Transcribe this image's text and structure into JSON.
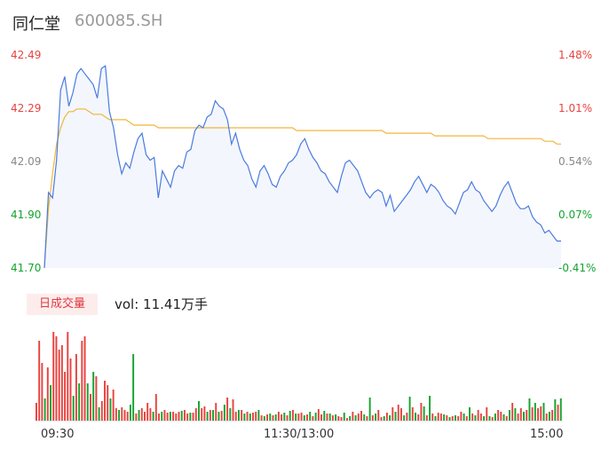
{
  "header": {
    "name": "同仁堂",
    "code": "600085.SH"
  },
  "colors": {
    "up": "#e8423f",
    "down": "#14a32f",
    "neutral": "#888888",
    "price_line": "#4a7be0",
    "avg_line": "#f2b53a",
    "area_fill": "#f3f6fc"
  },
  "volume_panel": {
    "tab_label": "日成交量",
    "vol_text": "vol: 11.41万手"
  },
  "chart_data": [
    {
      "type": "line",
      "title": "",
      "ylim": [
        41.7,
        42.49
      ],
      "left_ticks": [
        "42.49",
        "42.29",
        "42.09",
        "41.90",
        "41.70"
      ],
      "right_ticks": [
        "1.48%",
        "1.01%",
        "0.54%",
        "0.07%",
        "-0.41%"
      ],
      "x_ticks": [
        "09:30",
        "11:30/13:00",
        "15:00"
      ],
      "series": [
        {
          "name": "",
          "values": [
            41.7,
            41.98,
            41.96,
            42.1,
            42.36,
            42.41,
            42.3,
            42.35,
            42.42,
            42.44,
            42.42,
            42.4,
            42.38,
            42.33,
            42.44,
            42.45,
            42.28,
            42.22,
            42.12,
            42.05,
            42.09,
            42.07,
            42.13,
            42.18,
            42.2,
            42.12,
            42.1,
            42.11,
            41.96,
            42.06,
            42.03,
            42.0,
            42.06,
            42.08,
            42.07,
            42.13,
            42.14,
            42.21,
            42.23,
            42.22,
            42.26,
            42.27,
            42.32,
            42.3,
            42.29,
            42.25,
            42.16,
            42.2,
            42.14,
            42.1,
            42.08,
            42.03,
            42.0,
            42.06,
            42.08,
            42.05,
            42.01,
            42.0,
            42.04,
            42.06,
            42.09,
            42.1,
            42.12,
            42.16,
            42.18,
            42.14,
            42.11,
            42.09,
            42.06,
            42.05,
            42.02,
            42.0,
            41.98,
            42.04,
            42.09,
            42.1,
            42.08,
            42.06,
            42.02,
            41.98,
            41.96,
            41.98,
            41.99,
            41.98,
            41.93,
            41.97,
            41.91,
            41.93,
            41.95,
            41.97,
            41.99,
            42.02,
            42.04,
            42.01,
            41.98,
            42.01,
            42.0,
            41.98,
            41.95,
            41.93,
            41.92,
            41.9,
            41.94,
            41.98,
            41.99,
            42.02,
            41.99,
            41.98,
            41.95,
            41.93,
            41.91,
            41.93,
            41.97,
            42.0,
            42.02,
            41.98,
            41.94,
            41.92,
            41.92,
            41.93,
            41.89,
            41.87,
            41.86,
            41.83,
            41.84,
            41.82,
            41.8,
            41.8
          ]
        },
        {
          "name": "",
          "values": [
            41.7,
            41.92,
            42.05,
            42.16,
            42.22,
            42.26,
            42.28,
            42.28,
            42.29,
            42.29,
            42.29,
            42.28,
            42.27,
            42.27,
            42.27,
            42.26,
            42.25,
            42.25,
            42.25,
            42.25,
            42.25,
            42.24,
            42.23,
            42.23,
            42.23,
            42.23,
            42.23,
            42.23,
            42.22,
            42.22,
            42.22,
            42.22,
            42.22,
            42.22,
            42.22,
            42.22,
            42.22,
            42.22,
            42.22,
            42.22,
            42.22,
            42.22,
            42.22,
            42.22,
            42.22,
            42.22,
            42.22,
            42.22,
            42.22,
            42.22,
            42.22,
            42.22,
            42.22,
            42.22,
            42.22,
            42.22,
            42.22,
            42.22,
            42.22,
            42.22,
            42.22,
            42.22,
            42.21,
            42.21,
            42.21,
            42.21,
            42.21,
            42.21,
            42.21,
            42.21,
            42.21,
            42.21,
            42.21,
            42.21,
            42.21,
            42.21,
            42.21,
            42.21,
            42.21,
            42.21,
            42.21,
            42.21,
            42.21,
            42.21,
            42.2,
            42.2,
            42.2,
            42.2,
            42.2,
            42.2,
            42.2,
            42.2,
            42.2,
            42.2,
            42.2,
            42.2,
            42.19,
            42.19,
            42.19,
            42.19,
            42.19,
            42.19,
            42.19,
            42.19,
            42.19,
            42.19,
            42.19,
            42.19,
            42.19,
            42.18,
            42.18,
            42.18,
            42.18,
            42.18,
            42.18,
            42.18,
            42.18,
            42.18,
            42.18,
            42.18,
            42.18,
            42.18,
            42.18,
            42.17,
            42.17,
            42.17,
            42.16,
            42.16
          ]
        }
      ]
    },
    {
      "type": "bar",
      "title": "",
      "values": [
        20,
        90,
        65,
        25,
        60,
        40,
        100,
        95,
        80,
        85,
        55,
        100,
        70,
        28,
        75,
        42,
        90,
        95,
        42,
        30,
        55,
        50,
        15,
        22,
        45,
        40,
        25,
        35,
        14,
        12,
        15,
        12,
        10,
        18,
        75,
        8,
        12,
        14,
        10,
        20,
        14,
        10,
        30,
        8,
        10,
        12,
        9,
        10,
        10,
        8,
        10,
        11,
        12,
        8,
        9,
        9,
        14,
        22,
        14,
        16,
        10,
        12,
        12,
        20,
        10,
        11,
        18,
        26,
        14,
        24,
        10,
        12,
        12,
        8,
        10,
        8,
        9,
        10,
        12,
        6,
        5,
        7,
        8,
        6,
        7,
        10,
        7,
        9,
        6,
        11,
        12,
        8,
        8,
        9,
        6,
        7,
        10,
        5,
        9,
        13,
        7,
        11,
        8,
        8,
        6,
        7,
        5,
        4,
        9,
        3,
        5,
        10,
        6,
        8,
        11,
        7,
        5,
        26,
        6,
        8,
        12,
        4,
        5,
        9,
        6,
        15,
        10,
        18,
        14,
        6,
        9,
        27,
        15,
        9,
        7,
        20,
        16,
        6,
        28,
        8,
        5,
        9,
        8,
        7,
        6,
        4,
        5,
        6,
        5,
        10,
        8,
        5,
        15,
        8,
        6,
        12,
        8,
        5,
        15,
        5,
        4,
        8,
        12,
        10,
        7,
        5,
        12,
        20,
        14,
        8,
        14,
        10,
        12,
        25,
        15,
        20,
        14,
        16,
        20,
        8,
        10,
        12,
        24,
        18,
        25
      ],
      "colors": [
        "r",
        "r",
        "r",
        "g",
        "r",
        "g",
        "r",
        "r",
        "r",
        "r",
        "r",
        "r",
        "r",
        "g",
        "r",
        "g",
        "r",
        "r",
        "g",
        "r",
        "g",
        "r",
        "g",
        "r",
        "r",
        "r",
        "g",
        "r",
        "r",
        "g",
        "r",
        "r",
        "r",
        "g",
        "g",
        "r",
        "g",
        "r",
        "r",
        "r",
        "r",
        "g",
        "r",
        "r",
        "g",
        "r",
        "r",
        "g",
        "r",
        "r",
        "r",
        "g",
        "r",
        "r",
        "g",
        "r",
        "r",
        "g",
        "r",
        "r",
        "g",
        "r",
        "g",
        "r",
        "g",
        "r",
        "g",
        "r",
        "g",
        "r",
        "r",
        "g",
        "r",
        "g",
        "r",
        "g",
        "r",
        "r",
        "g",
        "r",
        "g",
        "r",
        "g",
        "r",
        "g",
        "r",
        "r",
        "g",
        "r",
        "g",
        "r",
        "g",
        "r",
        "r",
        "g",
        "r",
        "g",
        "r",
        "g",
        "r",
        "r",
        "g",
        "r",
        "g",
        "r",
        "g",
        "r",
        "r",
        "g",
        "r",
        "g",
        "r",
        "g",
        "r",
        "r",
        "g",
        "r",
        "g",
        "r",
        "g",
        "r",
        "r",
        "g",
        "r",
        "g",
        "r",
        "g",
        "r",
        "r",
        "g",
        "r",
        "g",
        "r",
        "g",
        "r",
        "r",
        "g",
        "r",
        "g",
        "r",
        "g",
        "r",
        "r",
        "g",
        "r",
        "g",
        "r",
        "g",
        "r",
        "r",
        "g",
        "r",
        "g",
        "r",
        "g",
        "r",
        "r",
        "g",
        "r",
        "g",
        "r",
        "g",
        "r",
        "r",
        "g",
        "r",
        "g",
        "r",
        "g",
        "r",
        "r",
        "g",
        "r",
        "g",
        "r",
        "g",
        "r",
        "r",
        "g",
        "r",
        "g",
        "r",
        "g",
        "r",
        "g"
      ]
    }
  ]
}
